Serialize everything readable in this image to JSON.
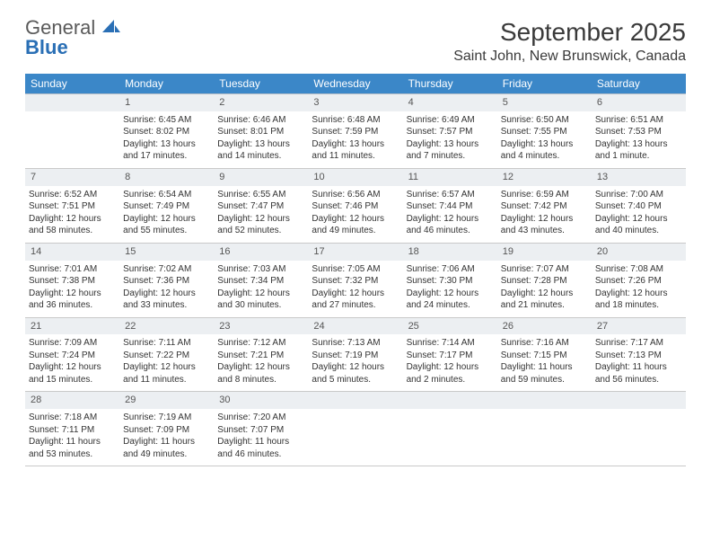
{
  "brand": {
    "general": "General",
    "blue": "Blue"
  },
  "title": "September 2025",
  "location": "Saint John, New Brunswick, Canada",
  "header": {
    "bg": "#3b87c8",
    "text": "#ffffff",
    "days": [
      "Sunday",
      "Monday",
      "Tuesday",
      "Wednesday",
      "Thursday",
      "Friday",
      "Saturday"
    ]
  },
  "colors": {
    "daynum_bg": "#eceff2",
    "daynum_border": "#b8c0c8",
    "cell_border": "#c9c9c9",
    "body_text": "#333333"
  },
  "layout": {
    "first_weekday": 1,
    "days_in_month": 30,
    "weeks": 5,
    "fontsize_daynum": 11,
    "fontsize_cell": 10,
    "fontsize_header": 12
  },
  "days": {
    "1": {
      "sunrise": "6:45 AM",
      "sunset": "8:02 PM",
      "daylight": "13 hours and 17 minutes."
    },
    "2": {
      "sunrise": "6:46 AM",
      "sunset": "8:01 PM",
      "daylight": "13 hours and 14 minutes."
    },
    "3": {
      "sunrise": "6:48 AM",
      "sunset": "7:59 PM",
      "daylight": "13 hours and 11 minutes."
    },
    "4": {
      "sunrise": "6:49 AM",
      "sunset": "7:57 PM",
      "daylight": "13 hours and 7 minutes."
    },
    "5": {
      "sunrise": "6:50 AM",
      "sunset": "7:55 PM",
      "daylight": "13 hours and 4 minutes."
    },
    "6": {
      "sunrise": "6:51 AM",
      "sunset": "7:53 PM",
      "daylight": "13 hours and 1 minute."
    },
    "7": {
      "sunrise": "6:52 AM",
      "sunset": "7:51 PM",
      "daylight": "12 hours and 58 minutes."
    },
    "8": {
      "sunrise": "6:54 AM",
      "sunset": "7:49 PM",
      "daylight": "12 hours and 55 minutes."
    },
    "9": {
      "sunrise": "6:55 AM",
      "sunset": "7:47 PM",
      "daylight": "12 hours and 52 minutes."
    },
    "10": {
      "sunrise": "6:56 AM",
      "sunset": "7:46 PM",
      "daylight": "12 hours and 49 minutes."
    },
    "11": {
      "sunrise": "6:57 AM",
      "sunset": "7:44 PM",
      "daylight": "12 hours and 46 minutes."
    },
    "12": {
      "sunrise": "6:59 AM",
      "sunset": "7:42 PM",
      "daylight": "12 hours and 43 minutes."
    },
    "13": {
      "sunrise": "7:00 AM",
      "sunset": "7:40 PM",
      "daylight": "12 hours and 40 minutes."
    },
    "14": {
      "sunrise": "7:01 AM",
      "sunset": "7:38 PM",
      "daylight": "12 hours and 36 minutes."
    },
    "15": {
      "sunrise": "7:02 AM",
      "sunset": "7:36 PM",
      "daylight": "12 hours and 33 minutes."
    },
    "16": {
      "sunrise": "7:03 AM",
      "sunset": "7:34 PM",
      "daylight": "12 hours and 30 minutes."
    },
    "17": {
      "sunrise": "7:05 AM",
      "sunset": "7:32 PM",
      "daylight": "12 hours and 27 minutes."
    },
    "18": {
      "sunrise": "7:06 AM",
      "sunset": "7:30 PM",
      "daylight": "12 hours and 24 minutes."
    },
    "19": {
      "sunrise": "7:07 AM",
      "sunset": "7:28 PM",
      "daylight": "12 hours and 21 minutes."
    },
    "20": {
      "sunrise": "7:08 AM",
      "sunset": "7:26 PM",
      "daylight": "12 hours and 18 minutes."
    },
    "21": {
      "sunrise": "7:09 AM",
      "sunset": "7:24 PM",
      "daylight": "12 hours and 15 minutes."
    },
    "22": {
      "sunrise": "7:11 AM",
      "sunset": "7:22 PM",
      "daylight": "12 hours and 11 minutes."
    },
    "23": {
      "sunrise": "7:12 AM",
      "sunset": "7:21 PM",
      "daylight": "12 hours and 8 minutes."
    },
    "24": {
      "sunrise": "7:13 AM",
      "sunset": "7:19 PM",
      "daylight": "12 hours and 5 minutes."
    },
    "25": {
      "sunrise": "7:14 AM",
      "sunset": "7:17 PM",
      "daylight": "12 hours and 2 minutes."
    },
    "26": {
      "sunrise": "7:16 AM",
      "sunset": "7:15 PM",
      "daylight": "11 hours and 59 minutes."
    },
    "27": {
      "sunrise": "7:17 AM",
      "sunset": "7:13 PM",
      "daylight": "11 hours and 56 minutes."
    },
    "28": {
      "sunrise": "7:18 AM",
      "sunset": "7:11 PM",
      "daylight": "11 hours and 53 minutes."
    },
    "29": {
      "sunrise": "7:19 AM",
      "sunset": "7:09 PM",
      "daylight": "11 hours and 49 minutes."
    },
    "30": {
      "sunrise": "7:20 AM",
      "sunset": "7:07 PM",
      "daylight": "11 hours and 46 minutes."
    }
  }
}
